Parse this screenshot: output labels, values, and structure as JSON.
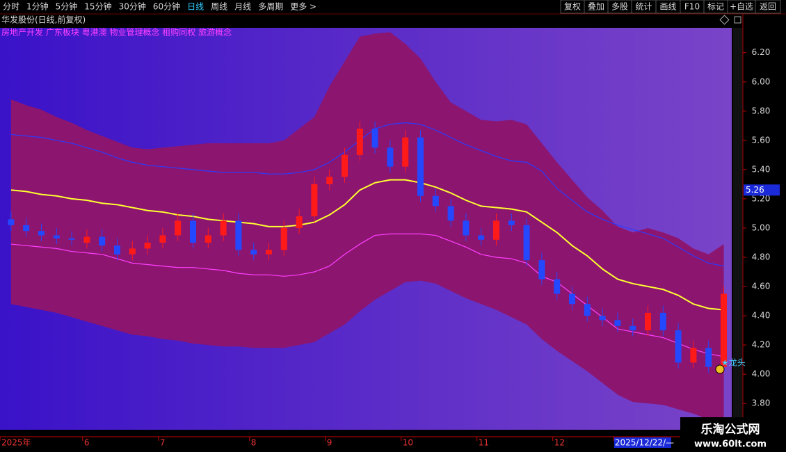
{
  "toolbar": {
    "periods": [
      "分时",
      "1分钟",
      "5分钟",
      "15分钟",
      "30分钟",
      "60分钟",
      "日线",
      "周线",
      "月线",
      "多周期",
      "更多 >"
    ],
    "selected_index": 6,
    "buttons": [
      "复权",
      "叠加",
      "多股",
      "统计",
      "画线",
      "F10",
      "标记",
      "+自选",
      "返回"
    ]
  },
  "chart_data": {
    "type": "candlestick",
    "title": "华发股份(日线,前复权)",
    "subtitle": "房地产开发 广东板块 粤港澳 物业管理概念 租购同权 旅游概念",
    "categories": [
      "2025年",
      null,
      null,
      null,
      null,
      "6",
      null,
      null,
      null,
      null,
      "7",
      null,
      null,
      null,
      null,
      null,
      "8",
      null,
      null,
      null,
      null,
      "9",
      null,
      null,
      null,
      null,
      "10",
      null,
      null,
      null,
      null,
      "11",
      null,
      null,
      null,
      null,
      "12",
      null,
      null,
      null,
      "2025/12/22/—",
      null,
      null,
      null,
      null,
      null,
      null,
      null
    ],
    "open": [
      5.06,
      5.02,
      4.98,
      4.95,
      4.93,
      4.9,
      4.94,
      4.88,
      4.82,
      4.86,
      4.9,
      4.95,
      5.05,
      4.9,
      4.95,
      5.05,
      4.85,
      4.82,
      4.85,
      5.0,
      5.08,
      5.3,
      5.35,
      5.5,
      5.68,
      5.55,
      5.42,
      5.62,
      5.22,
      5.15,
      5.05,
      4.95,
      4.92,
      5.05,
      5.02,
      4.78,
      4.65,
      4.55,
      4.48,
      4.4,
      4.37,
      4.33,
      4.3,
      4.42,
      4.3,
      4.08,
      4.18,
      4.05
    ],
    "high": [
      5.11,
      5.07,
      5.03,
      5.0,
      4.98,
      4.99,
      4.99,
      4.93,
      4.91,
      4.95,
      5.0,
      5.1,
      5.1,
      5.0,
      5.1,
      5.1,
      4.9,
      4.9,
      5.05,
      5.13,
      5.35,
      5.4,
      5.55,
      5.73,
      5.73,
      5.6,
      5.67,
      5.67,
      5.27,
      5.2,
      5.1,
      5.0,
      5.1,
      5.1,
      5.07,
      4.83,
      4.7,
      4.6,
      4.53,
      4.45,
      4.42,
      4.38,
      4.47,
      4.47,
      4.35,
      4.23,
      4.23,
      4.6
    ],
    "low": [
      4.98,
      4.94,
      4.91,
      4.89,
      4.88,
      4.86,
      4.84,
      4.78,
      4.78,
      4.82,
      4.86,
      4.91,
      4.86,
      4.86,
      4.91,
      4.81,
      4.78,
      4.78,
      4.81,
      4.96,
      5.04,
      5.26,
      5.31,
      5.46,
      5.51,
      5.38,
      5.38,
      5.18,
      5.11,
      5.01,
      4.91,
      4.88,
      4.88,
      4.98,
      4.74,
      4.61,
      4.51,
      4.44,
      4.36,
      4.33,
      4.29,
      4.26,
      4.26,
      4.26,
      4.04,
      4.04,
      4.01,
      4.01
    ],
    "close": [
      5.02,
      4.98,
      4.95,
      4.93,
      4.92,
      4.94,
      4.88,
      4.82,
      4.86,
      4.9,
      4.95,
      5.05,
      4.9,
      4.95,
      5.05,
      4.85,
      4.82,
      4.85,
      5.0,
      5.08,
      5.3,
      5.35,
      5.5,
      5.68,
      5.55,
      5.42,
      5.62,
      5.22,
      5.15,
      5.05,
      4.95,
      4.92,
      5.05,
      5.02,
      4.78,
      4.65,
      4.55,
      4.48,
      4.4,
      4.37,
      4.33,
      4.3,
      4.42,
      4.3,
      4.08,
      4.18,
      4.05,
      4.55
    ],
    "up_color": "#ff1a1a",
    "down_color": "#2448ff",
    "band": {
      "color": "#8c1570",
      "upper": [
        5.88,
        5.84,
        5.81,
        5.76,
        5.72,
        5.67,
        5.63,
        5.59,
        5.55,
        5.54,
        5.55,
        5.56,
        5.57,
        5.58,
        5.58,
        5.58,
        5.58,
        5.58,
        5.6,
        5.68,
        5.76,
        5.97,
        6.14,
        6.31,
        6.33,
        6.34,
        6.26,
        6.16,
        6.0,
        5.86,
        5.8,
        5.74,
        5.73,
        5.74,
        5.71,
        5.58,
        5.45,
        5.33,
        5.21,
        5.12,
        5.01,
        4.97,
        5.0,
        4.97,
        4.93,
        4.86,
        4.82,
        4.89
      ],
      "lower": [
        4.48,
        4.46,
        4.44,
        4.42,
        4.39,
        4.36,
        4.33,
        4.3,
        4.27,
        4.26,
        4.24,
        4.23,
        4.21,
        4.2,
        4.19,
        4.19,
        4.18,
        4.18,
        4.18,
        4.2,
        4.22,
        4.28,
        4.34,
        4.43,
        4.51,
        4.57,
        4.63,
        4.64,
        4.62,
        4.57,
        4.52,
        4.48,
        4.44,
        4.39,
        4.34,
        4.24,
        4.16,
        4.09,
        4.02,
        3.94,
        3.86,
        3.81,
        3.8,
        3.79,
        3.76,
        3.73,
        3.69,
        3.65
      ]
    },
    "series": [
      {
        "color": "#2a3cff",
        "values": [
          5.64,
          5.63,
          5.62,
          5.6,
          5.58,
          5.55,
          5.52,
          5.48,
          5.45,
          5.43,
          5.42,
          5.41,
          5.4,
          5.39,
          5.38,
          5.38,
          5.38,
          5.37,
          5.37,
          5.38,
          5.4,
          5.45,
          5.52,
          5.6,
          5.68,
          5.71,
          5.72,
          5.71,
          5.67,
          5.62,
          5.57,
          5.53,
          5.49,
          5.46,
          5.45,
          5.39,
          5.27,
          5.19,
          5.11,
          5.06,
          5.02,
          4.99,
          4.96,
          4.93,
          4.87,
          4.81,
          4.76,
          4.74
        ]
      },
      {
        "color": "#ffff30",
        "values": [
          5.26,
          5.25,
          5.23,
          5.22,
          5.2,
          5.19,
          5.17,
          5.16,
          5.14,
          5.12,
          5.11,
          5.09,
          5.08,
          5.06,
          5.05,
          5.04,
          5.03,
          5.01,
          5.01,
          5.02,
          5.04,
          5.09,
          5.16,
          5.26,
          5.31,
          5.33,
          5.33,
          5.31,
          5.28,
          5.24,
          5.19,
          5.15,
          5.14,
          5.13,
          5.11,
          5.04,
          4.97,
          4.88,
          4.81,
          4.72,
          4.65,
          4.62,
          4.6,
          4.58,
          4.54,
          4.48,
          4.45,
          4.44
        ]
      },
      {
        "color": "#ff40ff",
        "values": [
          4.89,
          4.88,
          4.87,
          4.86,
          4.84,
          4.83,
          4.82,
          4.79,
          4.76,
          4.75,
          4.74,
          4.73,
          4.73,
          4.72,
          4.71,
          4.69,
          4.68,
          4.68,
          4.67,
          4.68,
          4.7,
          4.74,
          4.82,
          4.89,
          4.95,
          4.96,
          4.96,
          4.96,
          4.95,
          4.91,
          4.87,
          4.82,
          4.8,
          4.79,
          4.76,
          4.67,
          4.63,
          4.55,
          4.47,
          4.39,
          4.31,
          4.29,
          4.27,
          4.25,
          4.21,
          4.17,
          4.14,
          4.12
        ]
      }
    ],
    "ylim": [
      3.62,
      6.37
    ],
    "yticks": [
      {
        "value": 6.2,
        "label": "6.20"
      },
      {
        "value": 6.0,
        "label": "6.00"
      },
      {
        "value": 5.8,
        "label": "5.80"
      },
      {
        "value": 5.6,
        "label": "5.60"
      },
      {
        "value": 5.4,
        "label": "5.40"
      },
      {
        "value": 5.2,
        "label": "5.20"
      },
      {
        "value": 5.0,
        "label": "5.00"
      },
      {
        "value": 4.8,
        "label": "4.80"
      },
      {
        "value": 4.6,
        "label": "4.60"
      },
      {
        "value": 4.4,
        "label": "4.40"
      },
      {
        "value": 4.2,
        "label": "4.20"
      },
      {
        "value": 4.0,
        "label": "4.00"
      },
      {
        "value": 3.8,
        "label": "3.80"
      }
    ],
    "marker_value": 5.26,
    "annotation": "★龙头"
  },
  "watermark": {
    "name": "乐淘公式网",
    "url": "www.60lt.com"
  }
}
